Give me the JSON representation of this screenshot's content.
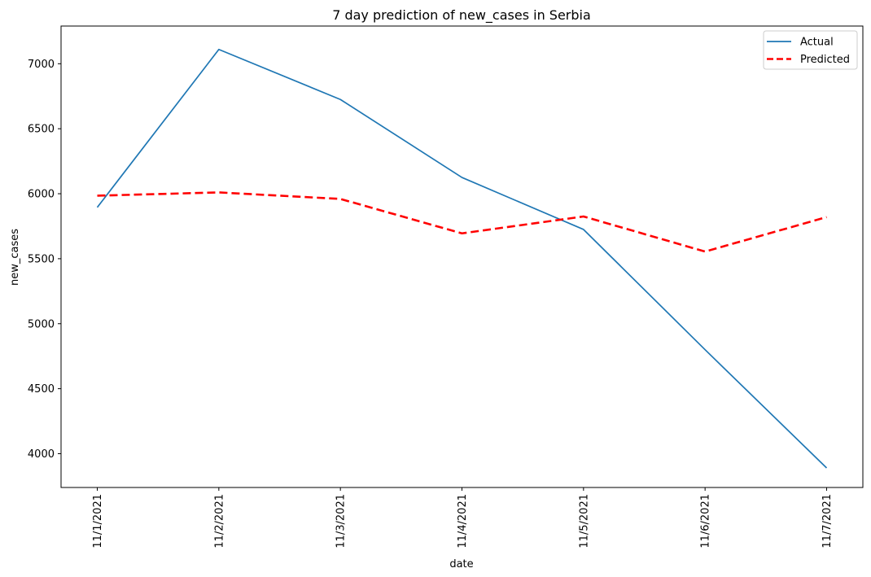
{
  "chart_data": {
    "type": "line",
    "title": "7 day prediction of new_cases in Serbia",
    "xlabel": "date",
    "ylabel": "new_cases",
    "categories": [
      "11/1/2021",
      "11/2/2021",
      "11/3/2021",
      "11/4/2021",
      "11/5/2021",
      "11/6/2021",
      "11/7/2021"
    ],
    "yticks": [
      4000,
      4500,
      5000,
      5500,
      6000,
      6500,
      7000
    ],
    "ylim": [
      3740,
      7290
    ],
    "grid": false,
    "legend_position": "top-right",
    "series": [
      {
        "name": "Actual",
        "color": "#1f77b4",
        "style": "solid",
        "values": [
          5895,
          7110,
          6725,
          6125,
          5725,
          4800,
          3890
        ]
      },
      {
        "name": "Predicted",
        "color": "#ff0000",
        "style": "dashed",
        "values": [
          5985,
          6010,
          5960,
          5695,
          5825,
          5555,
          5820
        ]
      }
    ]
  }
}
